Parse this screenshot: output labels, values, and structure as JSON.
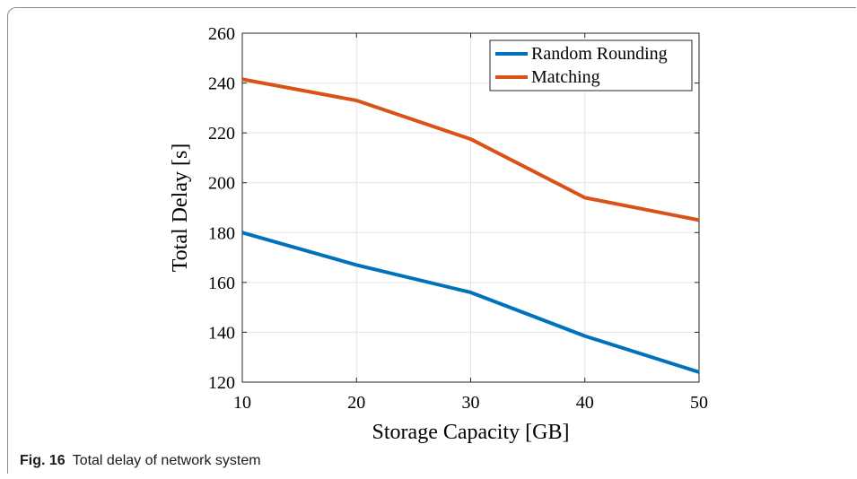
{
  "figure": {
    "label": "Fig. 16",
    "caption": "Total delay of network system"
  },
  "chart_data": {
    "type": "line",
    "x": [
      10,
      20,
      30,
      40,
      50
    ],
    "series": [
      {
        "name": "Random Rounding",
        "color": "#0072BD",
        "values": [
          180,
          167,
          156,
          138.5,
          124
        ]
      },
      {
        "name": "Matching",
        "color": "#D95319",
        "values": [
          241.5,
          233,
          217.5,
          194,
          185
        ]
      }
    ],
    "xlabel": "Storage Capacity [GB]",
    "ylabel": "Total Delay [s]",
    "xlim": [
      10,
      50
    ],
    "ylim": [
      120,
      260
    ],
    "xticks": [
      10,
      20,
      30,
      40,
      50
    ],
    "yticks": [
      120,
      140,
      160,
      180,
      200,
      220,
      240,
      260
    ],
    "grid": true,
    "legend_position": "top-right"
  }
}
